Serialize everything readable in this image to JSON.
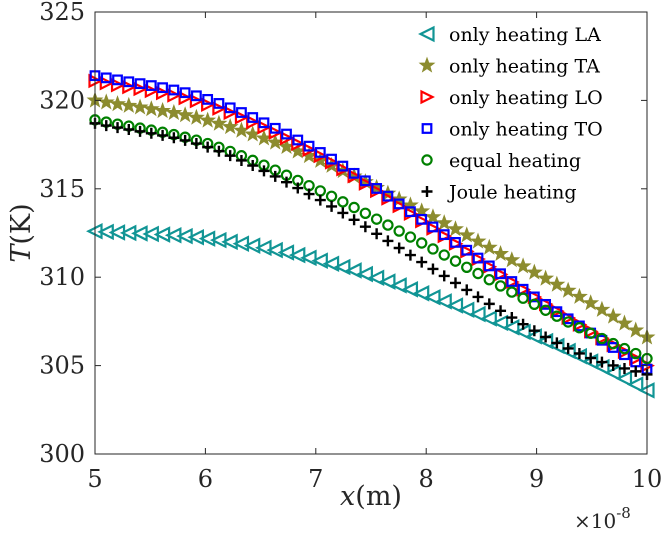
{
  "chart_data": {
    "type": "scatter",
    "title": "",
    "xlabel_var": "x",
    "xlabel_unit": "(m)",
    "ylabel_var": "T",
    "ylabel_unit": "(K)",
    "x_exponent_base": "×10",
    "x_exponent_power": "-8",
    "xlim": [
      5,
      10
    ],
    "ylim": [
      300,
      325
    ],
    "xticks": [
      5,
      6,
      7,
      8,
      9,
      10
    ],
    "yticks": [
      300,
      305,
      310,
      315,
      320,
      325
    ],
    "legend_position": "top-right",
    "series": [
      {
        "name": "only heating LA",
        "marker": "triangle-left",
        "color": "#119595",
        "x_start": 5,
        "x_end": 10,
        "n": 50,
        "y_knots": [
          [
            5,
            312.6
          ],
          [
            6,
            312.2
          ],
          [
            7,
            311.0
          ],
          [
            8,
            309.0
          ],
          [
            9,
            306.6
          ],
          [
            9.5,
            305.2
          ],
          [
            10,
            303.6
          ]
        ]
      },
      {
        "name": "only heating TA",
        "marker": "star",
        "color": "#8C8C2F",
        "x_start": 5,
        "x_end": 10,
        "n": 50,
        "y_knots": [
          [
            5,
            320.0
          ],
          [
            6,
            318.9
          ],
          [
            7,
            316.7
          ],
          [
            8,
            313.6
          ],
          [
            9,
            310.2
          ],
          [
            9.5,
            308.5
          ],
          [
            10,
            306.6
          ]
        ]
      },
      {
        "name": "only heating LO",
        "marker": "triangle-right",
        "color": "#FF0000",
        "x_start": 5,
        "x_end": 10,
        "n": 50,
        "y_knots": [
          [
            5,
            321.1
          ],
          [
            6,
            319.8
          ],
          [
            7,
            317.0
          ],
          [
            8,
            313.0
          ],
          [
            9,
            308.8
          ],
          [
            9.5,
            306.9
          ],
          [
            10,
            305.0
          ]
        ]
      },
      {
        "name": "only heating TO",
        "marker": "square",
        "color": "#0000FF",
        "x_start": 5,
        "x_end": 10,
        "n": 50,
        "y_knots": [
          [
            5,
            321.4
          ],
          [
            6,
            320.1
          ],
          [
            7,
            317.2
          ],
          [
            8,
            313.1
          ],
          [
            9,
            308.8
          ],
          [
            9.5,
            306.8
          ],
          [
            10,
            304.8
          ]
        ]
      },
      {
        "name": "equal heating",
        "marker": "circle",
        "color": "#008000",
        "x_start": 5,
        "x_end": 10,
        "n": 50,
        "y_knots": [
          [
            5,
            318.9
          ],
          [
            6,
            317.6
          ],
          [
            7,
            315.0
          ],
          [
            8,
            311.8
          ],
          [
            9,
            308.4
          ],
          [
            9.5,
            306.8
          ],
          [
            10,
            305.4
          ]
        ]
      },
      {
        "name": "Joule heating",
        "marker": "plus",
        "color": "#000000",
        "x_start": 5,
        "x_end": 10,
        "n": 50,
        "y_knots": [
          [
            5,
            318.7
          ],
          [
            6,
            317.4
          ],
          [
            7,
            314.5
          ],
          [
            8,
            310.7
          ],
          [
            9,
            306.9
          ],
          [
            9.5,
            305.4
          ],
          [
            10,
            304.5
          ]
        ]
      }
    ]
  }
}
